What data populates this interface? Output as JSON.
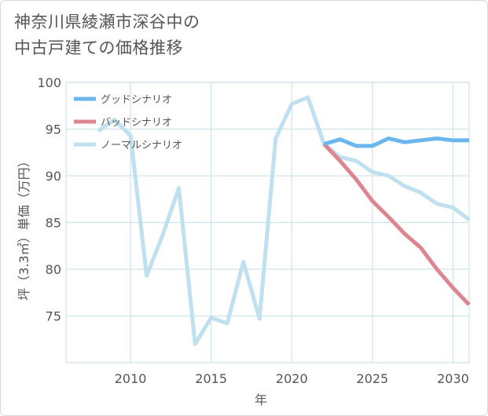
{
  "title_line1": "神奈川県綾瀬市深谷中の",
  "title_line2": "中古戸建ての価格推移",
  "chart_data": {
    "type": "line",
    "title": "神奈川県綾瀬市深谷中の中古戸建ての価格推移",
    "xlabel": "年",
    "ylabel": "坪（3.3㎡）単価（万円）",
    "xlim": [
      2006,
      2031
    ],
    "ylim": [
      70,
      100
    ],
    "x_ticks": [
      2010,
      2015,
      2020,
      2025,
      2030
    ],
    "y_ticks": [
      75,
      80,
      85,
      90,
      95,
      100
    ],
    "grid": true,
    "legend_position": "top-left",
    "series": [
      {
        "name": "グッドシナリオ",
        "color": "#6cb6ee",
        "points": [
          [
            2022,
            93.4
          ],
          [
            2023,
            93.9
          ],
          [
            2024,
            93.2
          ],
          [
            2025,
            93.2
          ],
          [
            2026,
            94.0
          ],
          [
            2027,
            93.6
          ],
          [
            2028,
            93.8
          ],
          [
            2029,
            94.0
          ],
          [
            2030,
            93.8
          ],
          [
            2031,
            93.8
          ]
        ]
      },
      {
        "name": "バッドシナリオ",
        "color": "#dd8691",
        "points": [
          [
            2022,
            93.4
          ],
          [
            2023,
            91.6
          ],
          [
            2024,
            89.6
          ],
          [
            2025,
            87.3
          ],
          [
            2026,
            85.6
          ],
          [
            2027,
            83.8
          ],
          [
            2028,
            82.3
          ],
          [
            2029,
            80.0
          ],
          [
            2030,
            78.0
          ],
          [
            2031,
            76.2
          ]
        ]
      },
      {
        "name": "ノーマルシナリオ",
        "color": "#bfe0ee",
        "points": [
          [
            2008,
            94.8
          ],
          [
            2009,
            96.0
          ],
          [
            2010,
            94.3
          ],
          [
            2011,
            79.3
          ],
          [
            2012,
            83.7
          ],
          [
            2013,
            88.7
          ],
          [
            2014,
            72.0
          ],
          [
            2015,
            74.8
          ],
          [
            2016,
            74.2
          ],
          [
            2017,
            80.8
          ],
          [
            2018,
            74.7
          ],
          [
            2019,
            94.0
          ],
          [
            2020,
            97.7
          ],
          [
            2021,
            98.4
          ],
          [
            2022,
            93.4
          ],
          [
            2023,
            92.0
          ],
          [
            2024,
            91.6
          ],
          [
            2025,
            90.4
          ],
          [
            2026,
            90.0
          ],
          [
            2027,
            88.9
          ],
          [
            2028,
            88.2
          ],
          [
            2029,
            87.0
          ],
          [
            2030,
            86.6
          ],
          [
            2031,
            85.3
          ]
        ]
      }
    ]
  }
}
